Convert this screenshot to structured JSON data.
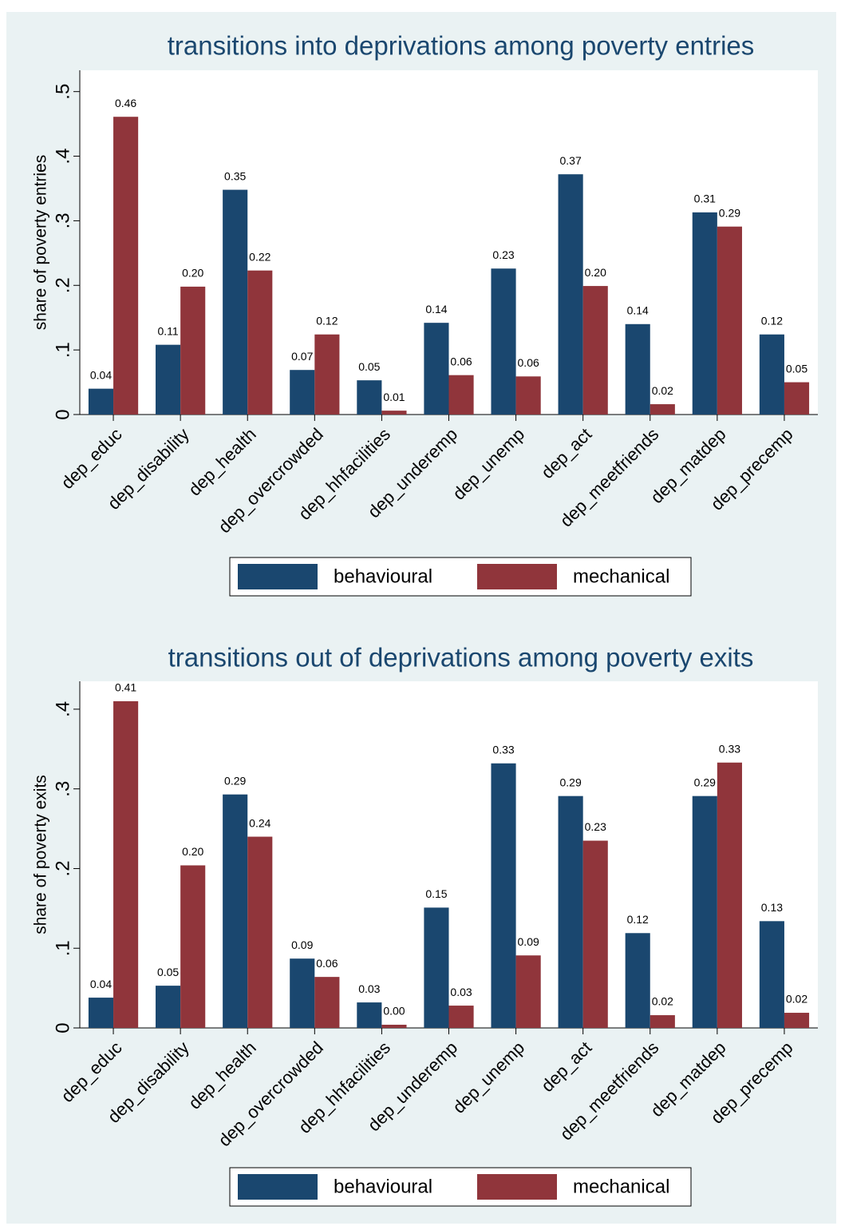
{
  "chart_data": [
    {
      "type": "bar",
      "title": "transitions into deprivations among poverty entries",
      "ylabel": "share of poverty entries",
      "categories": [
        "dep_educ",
        "dep_disability",
        "dep_health",
        "dep_overcrowded",
        "dep_hhfacilities",
        "dep_underemp",
        "dep_unemp",
        "dep_act",
        "dep_meetfriends",
        "dep_matdep",
        "dep_precemp"
      ],
      "series": [
        {
          "name": "behavioural",
          "color": "#1a476f",
          "values": [
            0.04,
            0.108,
            0.348,
            0.069,
            0.053,
            0.142,
            0.226,
            0.372,
            0.14,
            0.313,
            0.124
          ],
          "value_labels": [
            "0.04",
            "0.11",
            "0.35",
            "0.07",
            "0.05",
            "0.14",
            "0.23",
            "0.37",
            "0.14",
            "0.31",
            "0.12"
          ]
        },
        {
          "name": "mechanical",
          "color": "#90353b",
          "values": [
            0.461,
            0.198,
            0.223,
            0.124,
            0.006,
            0.061,
            0.059,
            0.199,
            0.016,
            0.291,
            0.05
          ],
          "value_labels": [
            "0.46",
            "0.20",
            "0.22",
            "0.12",
            "0.01",
            "0.06",
            "0.06",
            "0.20",
            "0.02",
            "0.29",
            "0.05"
          ]
        }
      ],
      "ylim": [
        0,
        0.533
      ],
      "yticks": [
        0,
        {
          "value": 0.1,
          "label": ".1"
        },
        {
          "value": 0.2,
          "label": ".2"
        },
        {
          "value": 0.3,
          "label": ".3"
        },
        {
          "value": 0.4,
          "label": ".4"
        },
        {
          "value": 0.5,
          "label": ".5"
        }
      ],
      "grid": false,
      "legend": "bottom"
    },
    {
      "type": "bar",
      "title": "transitions out of deprivations among poverty exits",
      "ylabel": "share of poverty exits",
      "categories": [
        "dep_educ",
        "dep_disability",
        "dep_health",
        "dep_overcrowded",
        "dep_hhfacilities",
        "dep_underemp",
        "dep_unemp",
        "dep_act",
        "dep_meetfriends",
        "dep_matdep",
        "dep_precemp"
      ],
      "series": [
        {
          "name": "behavioural",
          "color": "#1a476f",
          "values": [
            0.038,
            0.053,
            0.293,
            0.087,
            0.032,
            0.151,
            0.332,
            0.291,
            0.119,
            0.291,
            0.134
          ],
          "value_labels": [
            "0.04",
            "0.05",
            "0.29",
            "0.09",
            "0.03",
            "0.15",
            "0.33",
            "0.29",
            "0.12",
            "0.29",
            "0.13"
          ]
        },
        {
          "name": "mechanical",
          "color": "#90353b",
          "values": [
            0.41,
            0.204,
            0.24,
            0.064,
            0.004,
            0.028,
            0.091,
            0.235,
            0.016,
            0.333,
            0.019
          ],
          "value_labels": [
            "0.41",
            "0.20",
            "0.24",
            "0.06",
            "0.00",
            "0.03",
            "0.09",
            "0.23",
            "0.02",
            "0.33",
            "0.02"
          ]
        }
      ],
      "ylim": [
        0,
        0.435
      ],
      "yticks": [
        0,
        {
          "value": 0.1,
          "label": ".1"
        },
        {
          "value": 0.2,
          "label": ".2"
        },
        {
          "value": 0.3,
          "label": ".3"
        },
        {
          "value": 0.4,
          "label": ".4"
        }
      ],
      "grid": false,
      "legend": "bottom"
    }
  ]
}
